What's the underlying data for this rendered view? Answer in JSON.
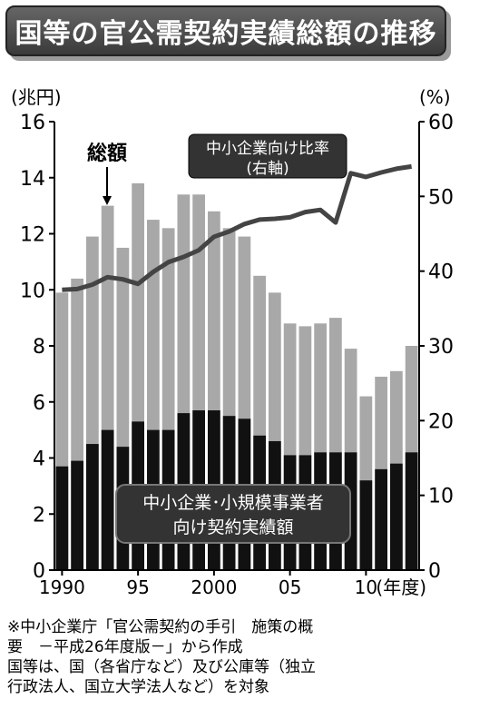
{
  "title": "国等の官公需契約実績総額の推移",
  "colors": {
    "total_bar": "#a8a8a8",
    "small_business_bar": "#111111",
    "ratio_line": "#444444",
    "label_box": "#333333"
  },
  "chart_data": {
    "type": "bar",
    "title": "国等の官公需契約実績総額の推移",
    "left_axis_unit": "(兆円)",
    "right_axis_unit": "(%)",
    "ylim": [
      0,
      16
    ],
    "y2lim": [
      0,
      60
    ],
    "y_ticks": [
      "0",
      "2",
      "4",
      "6",
      "8",
      "10",
      "12",
      "14",
      "16"
    ],
    "y2_ticks": [
      "0",
      "10",
      "20",
      "30",
      "40",
      "50",
      "60"
    ],
    "x_tick_labels": [
      {
        "index": 0,
        "label": "1990"
      },
      {
        "index": 5,
        "label": "95"
      },
      {
        "index": 10,
        "label": "2000"
      },
      {
        "index": 15,
        "label": "05"
      },
      {
        "index": 20,
        "label": "10"
      }
    ],
    "x_unit": "(年度)",
    "categories": [
      "1990",
      "1991",
      "1992",
      "1993",
      "1994",
      "1995",
      "1996",
      "1997",
      "1998",
      "1999",
      "2000",
      "2001",
      "2002",
      "2003",
      "2004",
      "2005",
      "2006",
      "2007",
      "2008",
      "2009",
      "2010",
      "2011",
      "2012",
      "2013"
    ],
    "series": [
      {
        "name": "総額",
        "values": [
          9.9,
          10.4,
          11.9,
          13.0,
          11.5,
          13.8,
          12.5,
          12.2,
          13.4,
          13.4,
          12.8,
          12.2,
          11.9,
          10.5,
          9.9,
          8.8,
          8.7,
          8.8,
          9.0,
          7.9,
          6.2,
          6.9,
          7.1,
          8.0
        ]
      },
      {
        "name": "中小企業・小規模事業者向け契約実績額",
        "values": [
          3.7,
          3.9,
          4.5,
          5.0,
          4.4,
          5.3,
          5.0,
          5.0,
          5.6,
          5.7,
          5.7,
          5.5,
          5.4,
          4.8,
          4.6,
          4.1,
          4.1,
          4.2,
          4.2,
          4.2,
          3.2,
          3.6,
          3.8,
          4.2
        ]
      },
      {
        "name": "中小企業向け比率(右軸)",
        "axis": "right",
        "values": [
          37.5,
          37.6,
          38.2,
          39.2,
          38.9,
          38.3,
          39.9,
          41.2,
          41.9,
          42.8,
          44.6,
          45.3,
          46.3,
          46.9,
          47.0,
          47.2,
          47.9,
          48.2,
          46.5,
          53.1,
          52.6,
          53.2,
          53.7,
          54.0
        ]
      }
    ],
    "annotations": {
      "total": "総額",
      "ratio_line1": "中小企業向け比率",
      "ratio_line2": "(右軸)",
      "small_line1": "中小企業･小規模事業者",
      "small_line2": "向け契約実績額"
    }
  },
  "notes": [
    "※中小企業庁「官公需契約の手引　施策の概",
    "要　－平成26年度版－」から作成",
    "国等は、国（各省庁など）及び公庫等（独立",
    "行政法人、国立大学法人など）を対象"
  ]
}
